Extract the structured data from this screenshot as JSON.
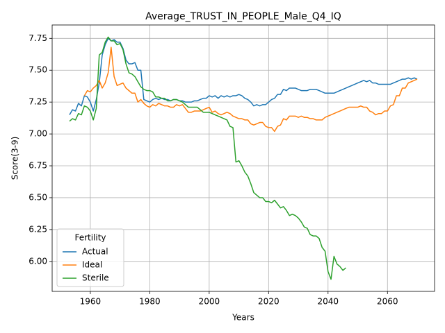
{
  "chart_data": {
    "type": "line",
    "title": "Average_TRUST_IN_PEOPLE_Male_Q4_IQ",
    "x_label": "Years",
    "y_label": "Score(3-9)",
    "legend_title": "Fertility",
    "legend_loc": "lower left",
    "grid": true,
    "xlim": [
      1947.15,
      2075.85
    ],
    "xticks": [
      1960,
      1980,
      2000,
      2020,
      2040,
      2060
    ],
    "ylim": [
      5.765,
      7.855
    ],
    "yticks": [
      {
        "value": 6,
        "label": "6.00"
      },
      {
        "value": 6.25,
        "label": "6.25"
      },
      {
        "value": 6.5,
        "label": "6.50"
      },
      {
        "value": 6.75,
        "label": "6.75"
      },
      {
        "value": 7,
        "label": "7.00"
      },
      {
        "value": 7.25,
        "label": "7.25"
      },
      {
        "value": 7.5,
        "label": "7.50"
      },
      {
        "value": 7.75,
        "label": "7.75"
      }
    ],
    "x": [
      1953,
      1954,
      1955,
      1956,
      1957,
      1958,
      1959,
      1960,
      1961,
      1962,
      1963,
      1964,
      1965,
      1966,
      1967,
      1968,
      1969,
      1970,
      1971,
      1972,
      1973,
      1974,
      1975,
      1976,
      1977,
      1978,
      1979,
      1980,
      1981,
      1982,
      1983,
      1984,
      1985,
      1986,
      1987,
      1988,
      1989,
      1990,
      1991,
      1992,
      1993,
      1994,
      1995,
      1996,
      1997,
      1998,
      1999,
      2000,
      2001,
      2002,
      2003,
      2004,
      2005,
      2006,
      2007,
      2008,
      2009,
      2010,
      2011,
      2012,
      2013,
      2014,
      2015,
      2016,
      2017,
      2018,
      2019,
      2020,
      2021,
      2022,
      2023,
      2024,
      2025,
      2026,
      2027,
      2028,
      2029,
      2030,
      2031,
      2032,
      2033,
      2034,
      2035,
      2036,
      2037,
      2038,
      2039,
      2040,
      2041,
      2042,
      2043,
      2044,
      2045,
      2046,
      2047,
      2048,
      2049,
      2050,
      2051,
      2052,
      2053,
      2054,
      2055,
      2056,
      2057,
      2058,
      2059,
      2060,
      2061,
      2062,
      2063,
      2064,
      2065,
      2066,
      2067,
      2068,
      2069,
      2070
    ],
    "series": [
      {
        "name": "Actual",
        "color": "#1f77b4",
        "values": [
          7.15,
          7.19,
          7.18,
          7.24,
          7.22,
          7.3,
          7.29,
          7.25,
          7.18,
          7.27,
          7.4,
          7.62,
          7.7,
          7.75,
          7.73,
          7.74,
          7.72,
          7.72,
          7.67,
          7.58,
          7.55,
          7.55,
          7.56,
          7.5,
          7.5,
          7.27,
          7.26,
          7.25,
          7.27,
          7.28,
          7.27,
          7.28,
          7.27,
          7.27,
          7.26,
          7.27,
          7.27,
          7.26,
          7.26,
          7.25,
          7.25,
          7.25,
          7.26,
          7.26,
          7.27,
          7.28,
          7.28,
          7.3,
          7.29,
          7.3,
          7.28,
          7.3,
          7.29,
          7.3,
          7.29,
          7.3,
          7.3,
          7.31,
          7.3,
          7.28,
          7.27,
          7.25,
          7.22,
          7.23,
          7.22,
          7.23,
          7.23,
          7.25,
          7.27,
          7.28,
          7.31,
          7.31,
          7.35,
          7.34,
          7.36,
          7.36,
          7.36,
          7.35,
          7.34,
          7.34,
          7.34,
          7.35,
          7.35,
          7.35,
          7.34,
          7.33,
          7.32,
          7.32,
          7.32,
          7.32,
          7.33,
          7.34,
          7.35,
          7.36,
          7.37,
          7.38,
          7.39,
          7.4,
          7.41,
          7.42,
          7.41,
          7.42,
          7.4,
          7.4,
          7.39,
          7.39,
          7.39,
          7.39,
          7.39,
          7.4,
          7.41,
          7.42,
          7.43,
          7.43,
          7.44,
          7.43,
          7.44,
          7.43
        ]
      },
      {
        "name": "Ideal",
        "color": "#ff7f0e",
        "values": [
          null,
          null,
          null,
          null,
          null,
          7.3,
          7.34,
          7.33,
          7.36,
          7.38,
          7.42,
          7.36,
          7.4,
          7.48,
          7.68,
          7.45,
          7.38,
          7.39,
          7.4,
          7.36,
          7.34,
          7.32,
          7.32,
          7.25,
          7.27,
          7.24,
          7.22,
          7.21,
          7.23,
          7.22,
          7.24,
          7.23,
          7.22,
          7.22,
          7.21,
          7.21,
          7.23,
          7.22,
          7.23,
          7.2,
          7.17,
          7.17,
          7.18,
          7.18,
          7.18,
          7.19,
          7.2,
          7.21,
          7.17,
          7.18,
          7.16,
          7.15,
          7.16,
          7.17,
          7.16,
          7.14,
          7.13,
          7.12,
          7.12,
          7.11,
          7.11,
          7.08,
          7.07,
          7.08,
          7.09,
          7.09,
          7.06,
          7.05,
          7.05,
          7.02,
          7.06,
          7.07,
          7.12,
          7.11,
          7.14,
          7.14,
          7.14,
          7.13,
          7.14,
          7.13,
          7.13,
          7.12,
          7.12,
          7.11,
          7.11,
          7.11,
          7.13,
          7.14,
          7.15,
          7.16,
          7.17,
          7.18,
          7.19,
          7.2,
          7.21,
          7.21,
          7.21,
          7.21,
          7.22,
          7.21,
          7.21,
          7.18,
          7.17,
          7.15,
          7.16,
          7.16,
          7.18,
          7.18,
          7.22,
          7.23,
          7.3,
          7.3,
          7.36,
          7.36,
          7.4,
          7.41,
          7.42,
          7.43
        ]
      },
      {
        "name": "Sterile",
        "color": "#2ca02c",
        "values": [
          7.1,
          7.12,
          7.11,
          7.16,
          7.15,
          7.22,
          7.21,
          7.18,
          7.11,
          7.2,
          7.62,
          7.64,
          7.72,
          7.76,
          7.73,
          7.73,
          7.7,
          7.71,
          7.66,
          7.55,
          7.48,
          7.47,
          7.45,
          7.41,
          7.37,
          7.35,
          7.34,
          7.34,
          7.33,
          7.29,
          7.29,
          7.28,
          7.28,
          7.26,
          7.26,
          7.27,
          7.27,
          7.26,
          7.25,
          7.23,
          7.21,
          7.21,
          7.21,
          7.21,
          7.19,
          7.17,
          7.17,
          7.17,
          7.16,
          7.15,
          7.14,
          7.13,
          7.12,
          7.11,
          7.06,
          7.05,
          6.78,
          6.79,
          6.75,
          6.7,
          6.67,
          6.61,
          6.54,
          6.52,
          6.5,
          6.5,
          6.47,
          6.47,
          6.46,
          6.48,
          6.45,
          6.42,
          6.43,
          6.4,
          6.36,
          6.37,
          6.36,
          6.34,
          6.31,
          6.27,
          6.26,
          6.21,
          6.2,
          6.2,
          6.18,
          6.11,
          6.08,
          5.92,
          5.86,
          6.04,
          5.98,
          5.96,
          5.93,
          5.95,
          null,
          null,
          null,
          null,
          null,
          null,
          null,
          null,
          null,
          null,
          null,
          null,
          null,
          null,
          null,
          null,
          null,
          null,
          null,
          null,
          null,
          null,
          null,
          null
        ]
      }
    ]
  }
}
